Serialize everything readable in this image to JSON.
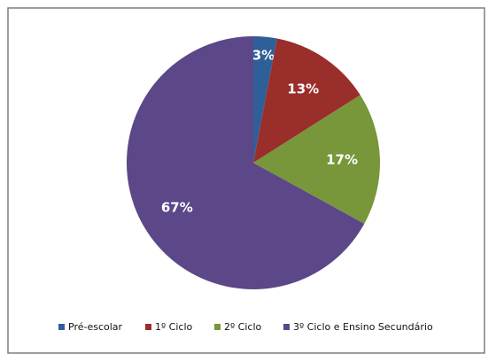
{
  "chart_data": {
    "type": "pie",
    "categories": [
      "Pré-escolar",
      "1º Ciclo",
      "2º Ciclo",
      "3º Ciclo  e Ensino Secundário"
    ],
    "values": [
      3,
      13,
      17,
      67
    ],
    "value_labels": [
      "3%",
      "13%",
      "17%",
      "67%"
    ],
    "colors": [
      "#2f5f98",
      "#9a2e2b",
      "#78963a",
      "#5c4788"
    ],
    "legend": "bottom"
  }
}
